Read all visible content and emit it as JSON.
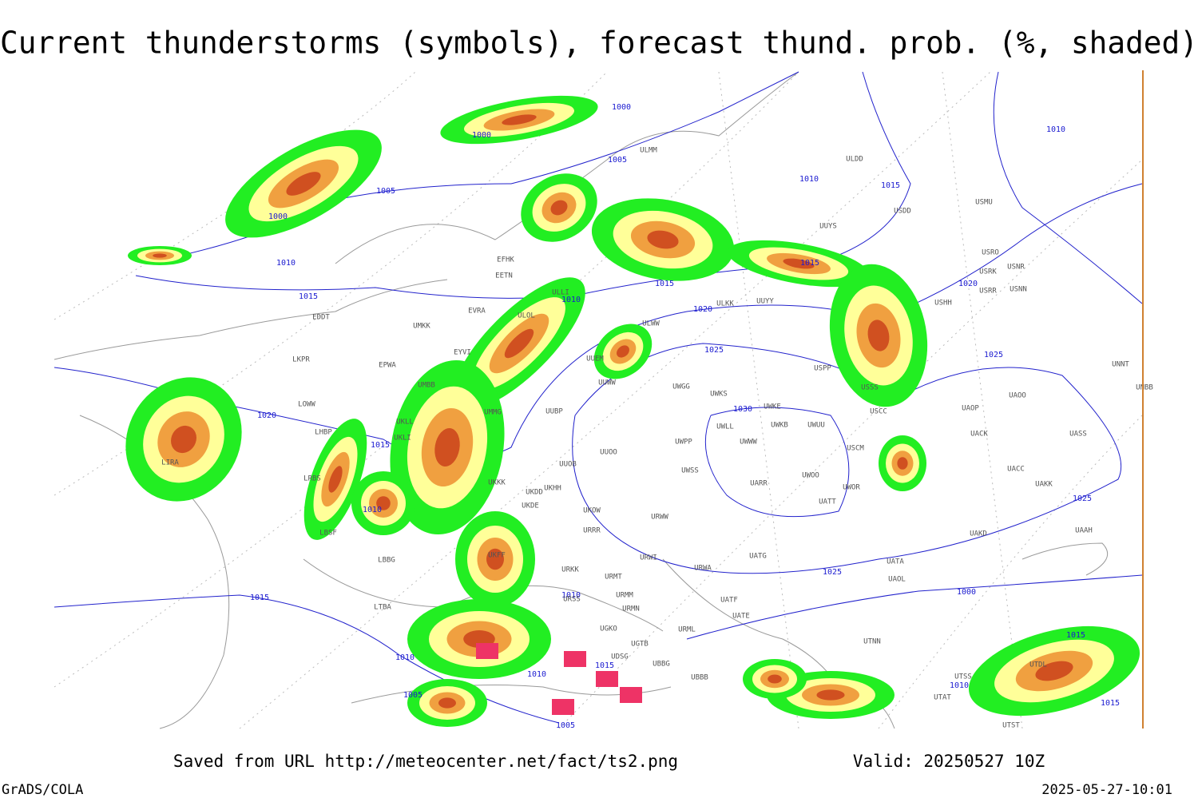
{
  "header": {
    "title": "Current thunderstorms (symbols), forecast thund. prob. (%, shaded)"
  },
  "map": {
    "isobar_labels": [
      1000,
      1000,
      1005,
      1010,
      1015,
      1005,
      1000,
      1010,
      1015,
      1015,
      1010,
      1015,
      1020,
      1020,
      1025,
      1025,
      1020,
      1015,
      1030,
      1010,
      1025,
      1025,
      1000,
      1015,
      1010,
      1010,
      1015,
      1010,
      1005,
      1005,
      1015,
      1010,
      1015,
      1010
    ],
    "stations": [
      "ULMM",
      "ULDD",
      "USMU",
      "USDD",
      "UUYS",
      "USRO",
      "USRK",
      "USNR",
      "USRR",
      "USNN",
      "USHH",
      "EFHK",
      "EETN",
      "ULLI",
      "UUYY",
      "ULKK",
      "EVRA",
      "ULOL",
      "ULWW",
      "EDDT",
      "UMKK",
      "EYVI",
      "UUEM",
      "UMMG",
      "EPWA",
      "UMBB",
      "UUWW",
      "LKPR",
      "UWGG",
      "UWKS",
      "USSS",
      "USPP",
      "USCC",
      "UAOO",
      "UAOP",
      "UNNT",
      "UNBB",
      "UKLL",
      "UUBP",
      "UWKE",
      "UWKB",
      "UWUU",
      "LOWW",
      "UKLI",
      "LHBP",
      "UUOO",
      "UWPP",
      "UWWW",
      "UWLL",
      "USCM",
      "UACK",
      "UASS",
      "UUOB",
      "LIRA",
      "UWSS",
      "UARR",
      "UWOO",
      "UWOR",
      "UATT",
      "UACC",
      "UAKK",
      "LRBS",
      "UKKK",
      "UKDD",
      "UKHH",
      "UKDE",
      "UKOW",
      "URWW",
      "URRR",
      "UAKD",
      "UAAH",
      "LBSF",
      "UKFF",
      "LBBG",
      "URWI",
      "UATG",
      "UATA",
      "URWA",
      "UAOL",
      "URKK",
      "URMT",
      "URMM",
      "URSS",
      "URMN",
      "LTBA",
      "UATE",
      "UATF",
      "URML",
      "UGTB",
      "UGKO",
      "UDSG",
      "UBBG",
      "UBBB",
      "UTNN",
      "UTSS",
      "UTDL",
      "UTAT",
      "UTST"
    ]
  },
  "footer": {
    "source": "Saved from URL http://meteocenter.net/fact/ts2.png",
    "valid": "Valid: 20250527 10Z",
    "software": "GrADS/COLA",
    "timestamp": "2025-05-27-10:01"
  }
}
